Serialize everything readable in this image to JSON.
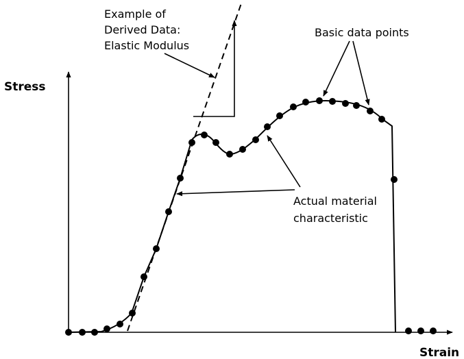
{
  "axes": {
    "y_label": "Stress",
    "x_label": "Strain"
  },
  "annotations": {
    "derived": [
      "Example of",
      "Derived Data:",
      "Elastic Modulus"
    ],
    "basic_points": "Basic data points",
    "material": [
      "Actual material",
      "characteristic"
    ]
  }
}
